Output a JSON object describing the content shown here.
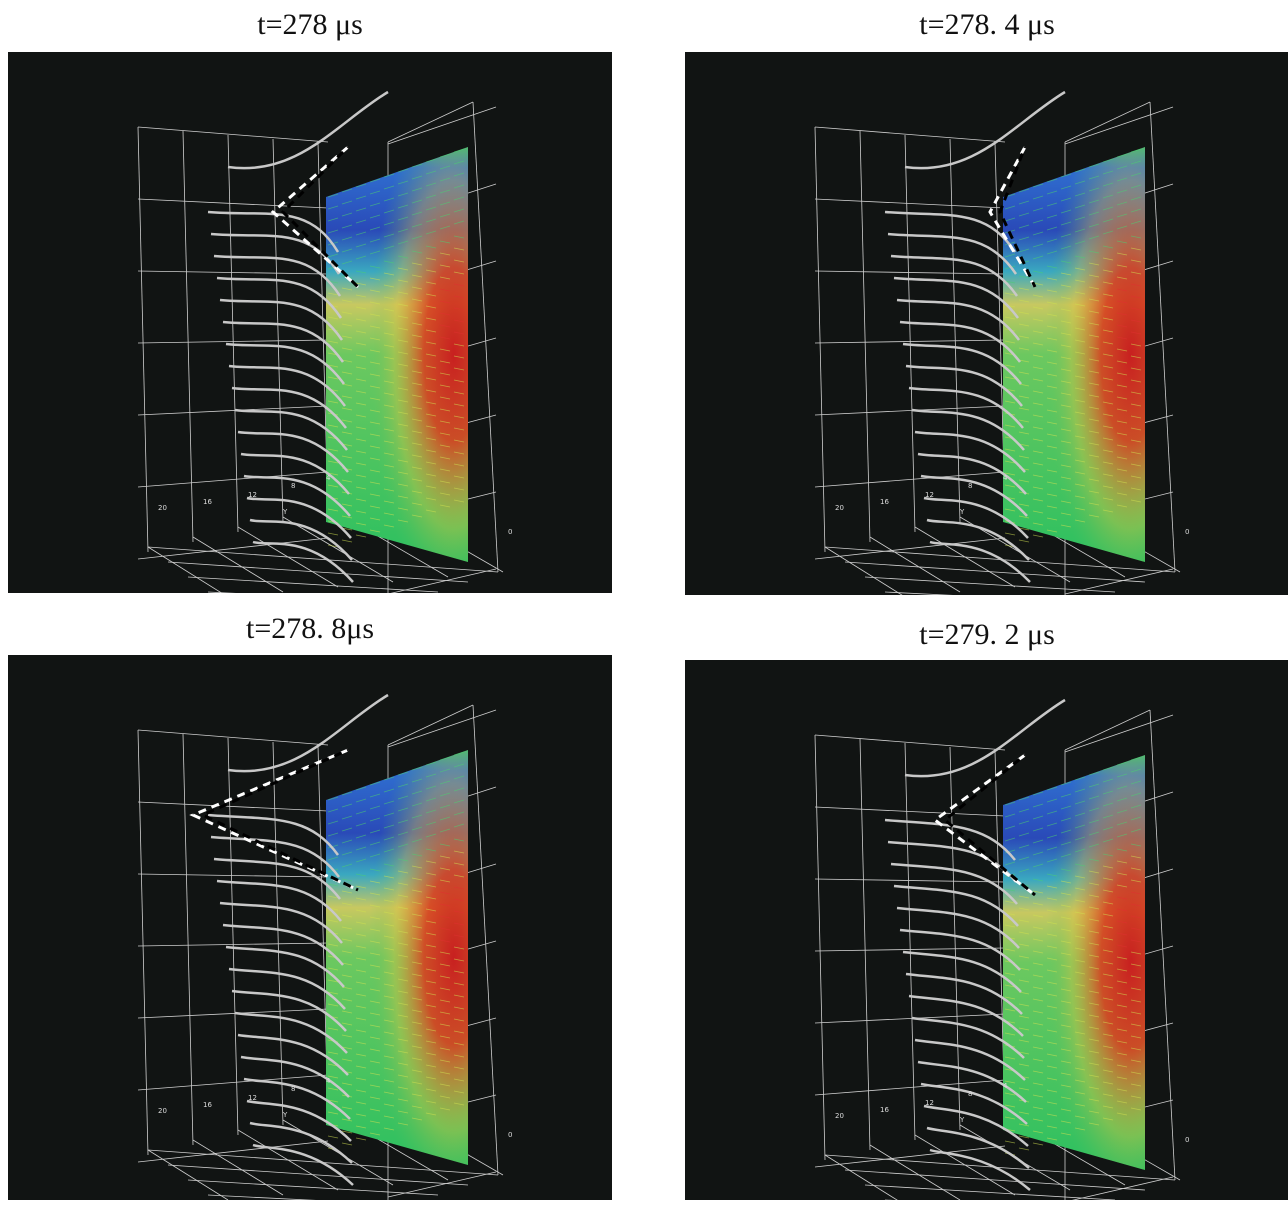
{
  "panels": [
    {
      "title": "t=278 μs",
      "axis_labels": [
        "20",
        "16",
        "12",
        "8",
        "Y",
        "4",
        "0"
      ]
    },
    {
      "title": "t=278. 4 μs",
      "axis_labels": [
        "20",
        "16",
        "12",
        "8",
        "Y",
        "4",
        "0"
      ]
    },
    {
      "title": "t=278. 8μs",
      "axis_labels": [
        "20",
        "16",
        "12",
        "8",
        "Y",
        "4",
        "0"
      ]
    },
    {
      "title": "t=279. 2 μs",
      "axis_labels": [
        "20",
        "16",
        "12",
        "8",
        "Y",
        "4",
        "0"
      ]
    }
  ]
}
